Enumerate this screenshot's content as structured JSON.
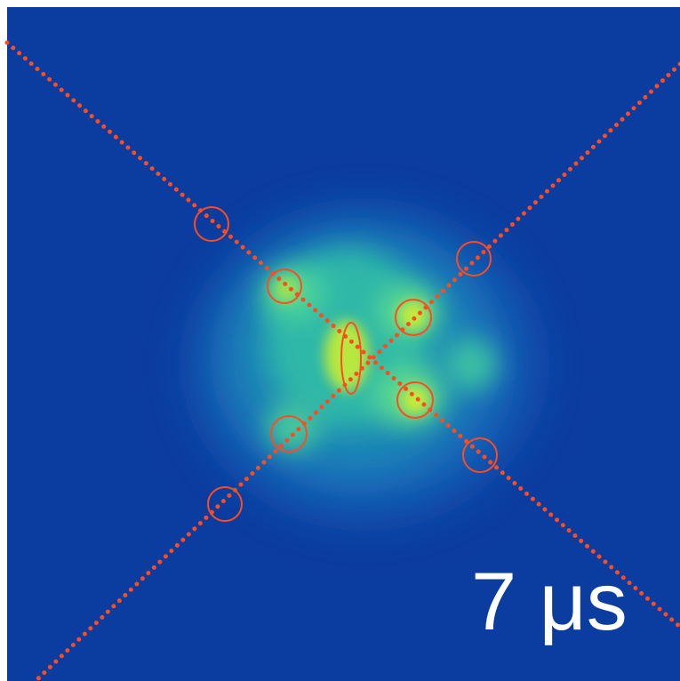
{
  "label": "7 μs"
}
